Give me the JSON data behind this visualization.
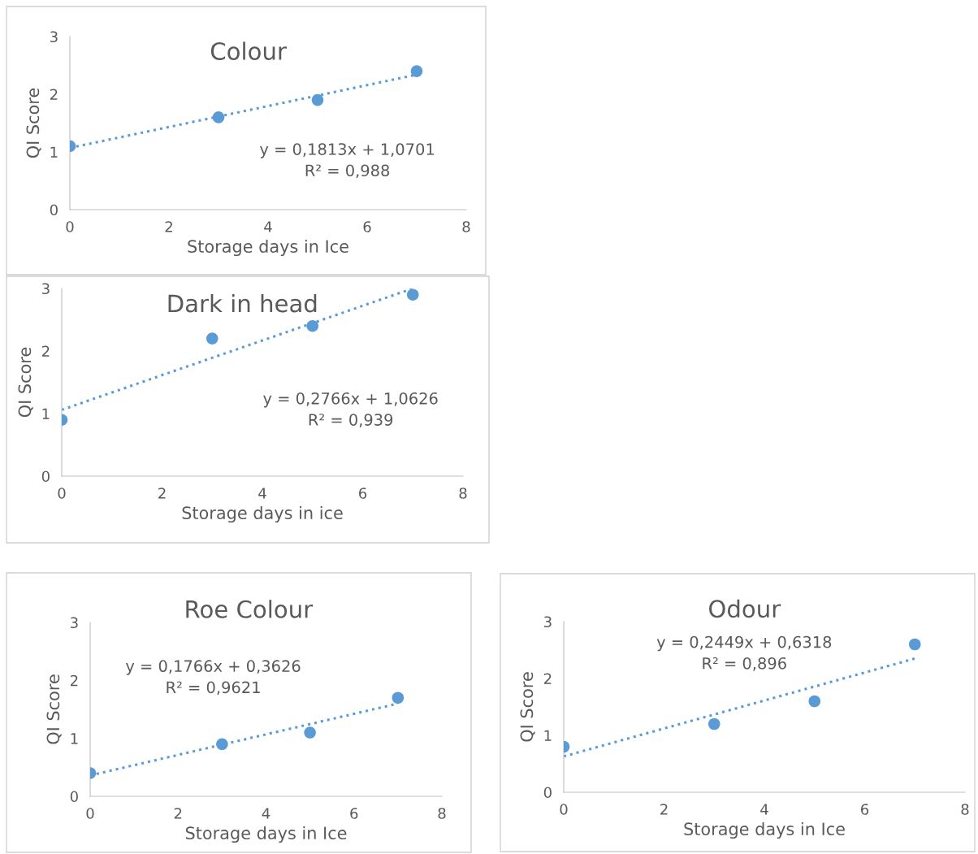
{
  "chart_data": [
    {
      "type": "scatter",
      "title": "Colour",
      "xlabel": "Storage days in Ice",
      "ylabel": "QI Score",
      "xlim": [
        0,
        8
      ],
      "ylim": [
        0,
        3
      ],
      "xticks": [
        0,
        2,
        4,
        6,
        8
      ],
      "yticks": [
        0,
        1,
        2,
        3
      ],
      "grid": false,
      "legend": false,
      "marker": "circle",
      "annotations": [
        "y = 0,1813x + 1,0701",
        "R² = 0,988"
      ],
      "series": [
        {
          "color": "#5b9bd5",
          "x": [
            0,
            3,
            5,
            7
          ],
          "values": [
            1.1,
            1.6,
            1.9,
            2.4
          ]
        },
        {
          "type": "line",
          "color": "#5b9bd5",
          "line_style": "dotted",
          "marker": "none",
          "x": [
            0,
            7
          ],
          "values": [
            1.07,
            2.34
          ]
        }
      ]
    },
    {
      "type": "scatter",
      "title": "Dark in head",
      "xlabel": "Storage days in ice",
      "ylabel": "QI Score",
      "xlim": [
        0,
        8
      ],
      "ylim": [
        0,
        3
      ],
      "xticks": [
        0,
        2,
        4,
        6,
        8
      ],
      "yticks": [
        0,
        1,
        2,
        3
      ],
      "grid": false,
      "legend": false,
      "marker": "circle",
      "annotations": [
        "y = 0,2766x + 1,0626",
        "R² = 0,939"
      ],
      "series": [
        {
          "color": "#5b9bd5",
          "x": [
            0,
            3,
            5,
            7
          ],
          "values": [
            0.9,
            2.2,
            2.4,
            2.9
          ]
        },
        {
          "type": "line",
          "color": "#5b9bd5",
          "line_style": "dotted",
          "marker": "none",
          "x": [
            0,
            7
          ],
          "values": [
            1.06,
            3.0
          ]
        }
      ]
    },
    {
      "type": "scatter",
      "title": "Roe Colour",
      "xlabel": "Storage days in Ice",
      "ylabel": "QI Score",
      "xlim": [
        0,
        8
      ],
      "ylim": [
        0,
        3
      ],
      "xticks": [
        0,
        2,
        4,
        6,
        8
      ],
      "yticks": [
        0,
        1,
        2,
        3
      ],
      "grid": false,
      "legend": false,
      "marker": "circle",
      "annotations": [
        "y = 0,1766x + 0,3626",
        "R² = 0,9621"
      ],
      "series": [
        {
          "color": "#5b9bd5",
          "x": [
            0,
            3,
            5,
            7
          ],
          "values": [
            0.4,
            0.9,
            1.1,
            1.7
          ]
        },
        {
          "type": "line",
          "color": "#5b9bd5",
          "line_style": "dotted",
          "marker": "none",
          "x": [
            0,
            7
          ],
          "values": [
            0.36,
            1.6
          ]
        }
      ]
    },
    {
      "type": "scatter",
      "title": "Odour",
      "xlabel": "Storage days in Ice",
      "ylabel": "QI Score",
      "xlim": [
        0,
        8
      ],
      "ylim": [
        0,
        3
      ],
      "xticks": [
        0,
        2,
        4,
        6,
        8
      ],
      "yticks": [
        0,
        1,
        2,
        3
      ],
      "grid": false,
      "legend": false,
      "marker": "circle",
      "annotations": [
        "y = 0,2449x + 0,6318",
        "R² = 0,896"
      ],
      "series": [
        {
          "color": "#5b9bd5",
          "x": [
            0,
            3,
            5,
            7
          ],
          "values": [
            0.8,
            1.2,
            1.6,
            2.6
          ]
        },
        {
          "type": "line",
          "color": "#5b9bd5",
          "line_style": "dotted",
          "marker": "none",
          "x": [
            0,
            7
          ],
          "values": [
            0.63,
            2.35
          ]
        }
      ]
    }
  ]
}
